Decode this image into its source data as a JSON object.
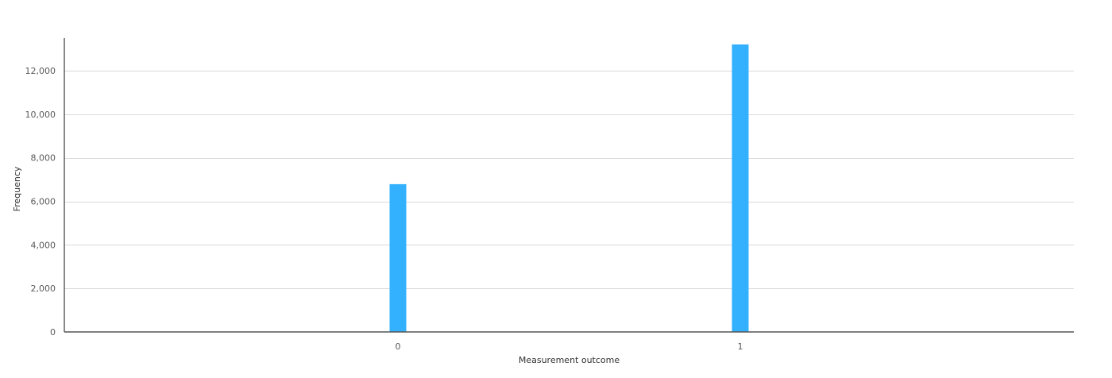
{
  "chart_data": {
    "type": "bar",
    "title": "",
    "xlabel": "Measurement outcome",
    "ylabel": "Frequency",
    "categories": [
      "0",
      "1"
    ],
    "values": [
      6790,
      13210
    ],
    "ylim": [
      0,
      13500
    ],
    "yticks": [
      0,
      2000,
      4000,
      6000,
      8000,
      10000,
      12000
    ],
    "ytick_labels": [
      "0",
      "2,000",
      "4,000",
      "6,000",
      "8,000",
      "10,000",
      "12,000"
    ],
    "grid": true,
    "legend": "none",
    "bar_color": "#33b1ff"
  }
}
